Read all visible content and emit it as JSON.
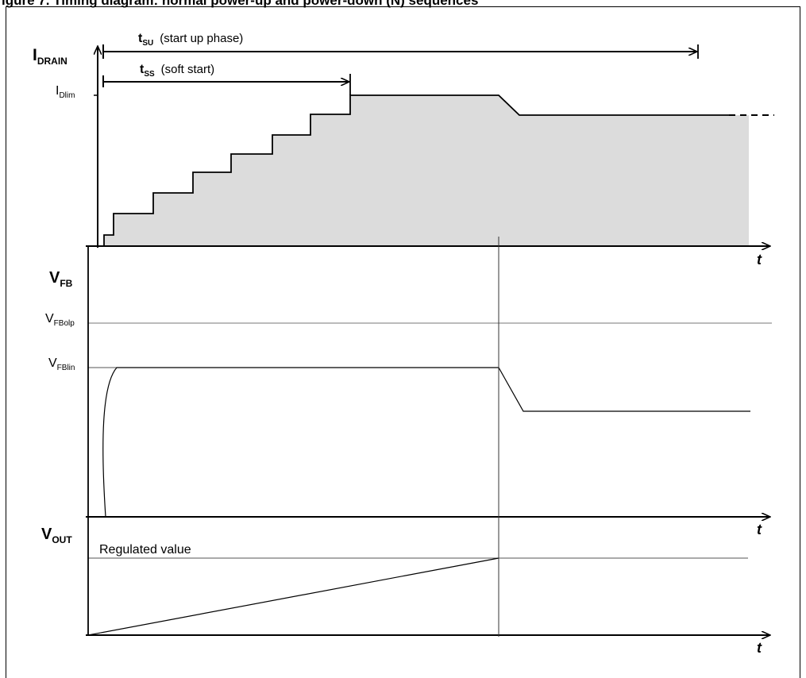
{
  "header": {
    "clipped_title": "igure 7.   Timing diagram: normal power-up and power-down (N) sequences"
  },
  "colors": {
    "line": "#000000",
    "fill": "#dcdcdc",
    "thin": "#333333"
  },
  "panel1": {
    "axis_label_main": "I",
    "axis_label_sub": "DRAIN",
    "level_main": "I",
    "level_sub": "Dlim",
    "tsu_main": "t",
    "tsu_sub": "SU",
    "tsu_text": "(start up phase)",
    "tss_main": "t",
    "tss_sub": "SS",
    "tss_text": "(soft start)",
    "t_label": "t"
  },
  "panel2": {
    "axis_label_main": "V",
    "axis_label_sub": "FB",
    "olp_main": "V",
    "olp_sub": "FBolp",
    "lin_main": "V",
    "lin_sub": "FBlin",
    "t_label": "t"
  },
  "panel3": {
    "axis_label_main": "V",
    "axis_label_sub": "OUT",
    "regulated_label": "Regulated value",
    "t_label": "t"
  }
}
